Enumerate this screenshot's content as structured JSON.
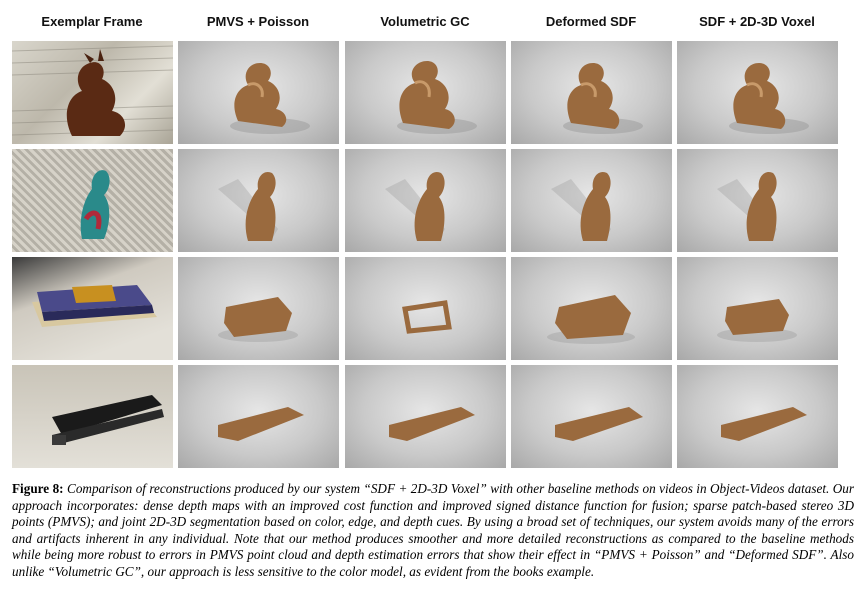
{
  "columns": [
    "Exemplar Frame",
    "PMVS + Poisson",
    "Volumetric GC",
    "Deformed SDF",
    "SDF + 2D-3D Voxel"
  ],
  "rows": [
    {
      "object": "dragon"
    },
    {
      "object": "figurine"
    },
    {
      "object": "books"
    },
    {
      "object": "stapler"
    }
  ],
  "caption": {
    "label": "Figure 8:",
    "text": "Comparison of reconstructions produced by our system “SDF + 2D-3D Voxel” with other baseline methods on videos in Object-Videos dataset. Our approach incorporates: dense depth maps with an improved cost function and improved signed distance function for fusion; sparse patch-based stereo 3D points (PMVS); and joint 2D-3D segmentation based on color, edge, and depth cues. By using a broad set of techniques, our system avoids many of the errors and artifacts inherent in any individual. Note that our method produces smoother and more detailed reconstructions as compared to the baseline methods while being more robust to errors in PMVS point cloud and depth estimation errors that show their effect in “PMVS + Poisson” and “Deformed SDF”. Also unlike “Volumetric GC”, our approach is less sensitive to the color model, as evident from the books example."
  },
  "colors": {
    "bronze": "#9a6a3e",
    "bronze_light": "#c89a6a",
    "shadow": "#8f8f8f"
  }
}
